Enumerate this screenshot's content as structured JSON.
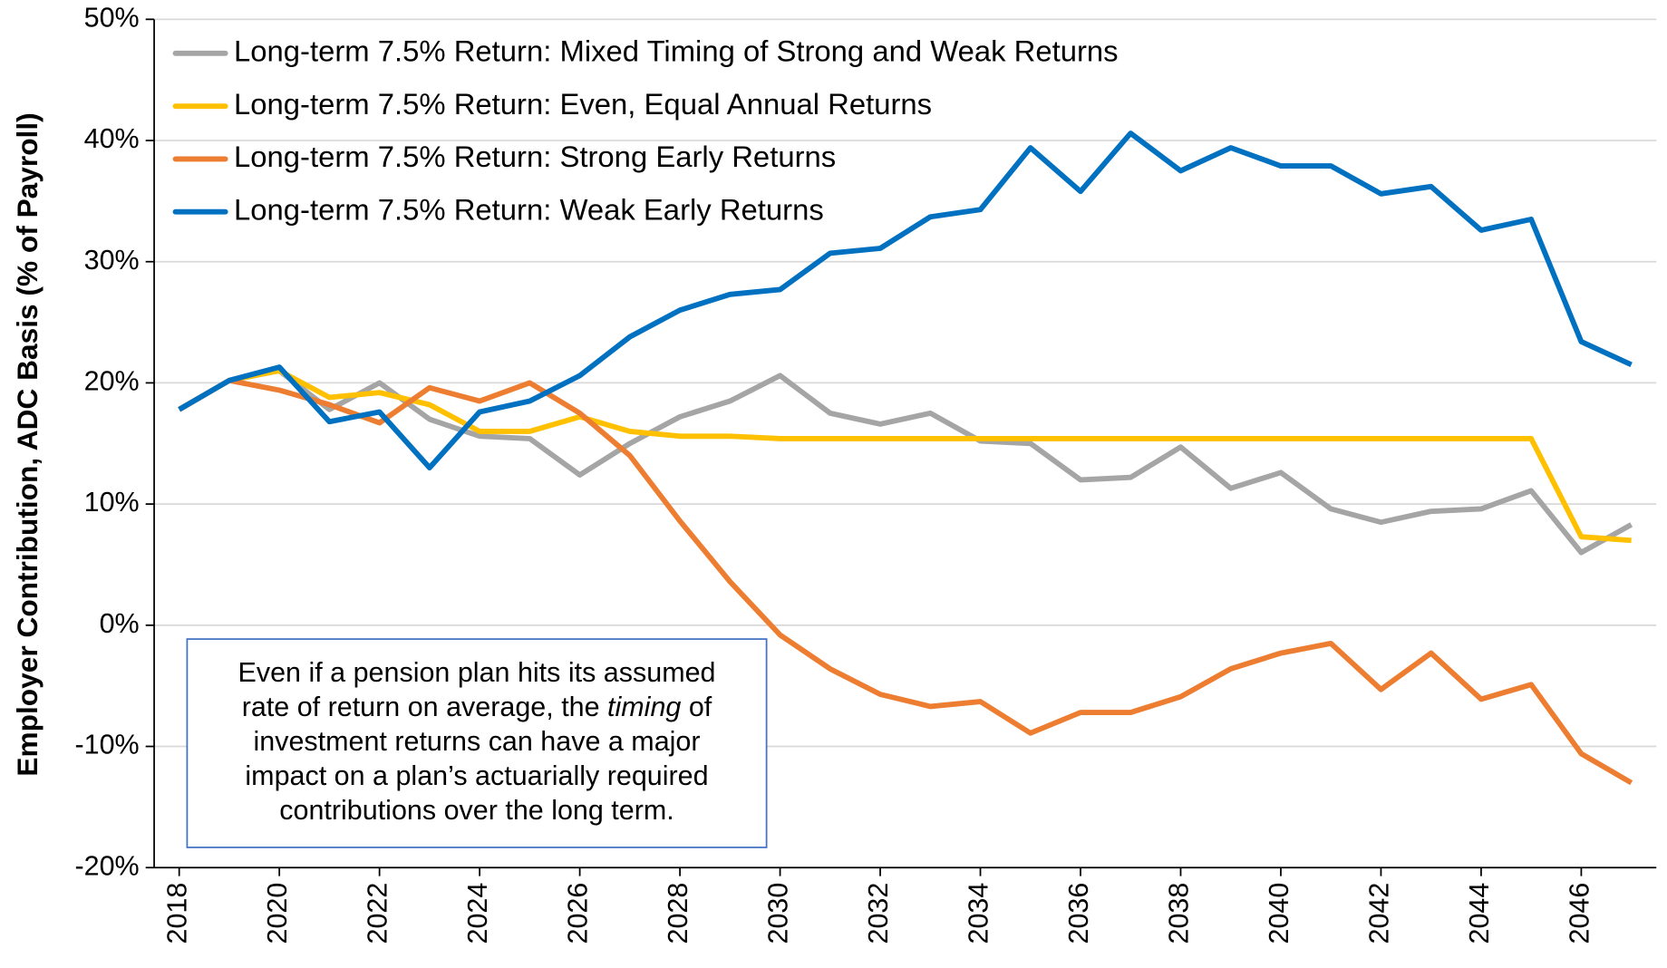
{
  "chart_data": {
    "type": "line",
    "y_label": "Employer Contribution, ADC Basis (% of Payroll)",
    "x": [
      2018,
      2019,
      2020,
      2021,
      2022,
      2023,
      2024,
      2025,
      2026,
      2027,
      2028,
      2029,
      2030,
      2031,
      2032,
      2033,
      2034,
      2035,
      2036,
      2037,
      2038,
      2039,
      2040,
      2041,
      2042,
      2043,
      2044,
      2045,
      2046,
      2047
    ],
    "xlim": [
      2017.5,
      2047.5
    ],
    "xticks": [
      2018,
      2020,
      2022,
      2024,
      2026,
      2028,
      2030,
      2032,
      2034,
      2036,
      2038,
      2040,
      2042,
      2044,
      2046
    ],
    "ylim": [
      -20,
      50
    ],
    "yticks": [
      {
        "value": -20,
        "label": "-20%"
      },
      {
        "value": -10,
        "label": "-10%"
      },
      {
        "value": 0,
        "label": "0%"
      },
      {
        "value": 10,
        "label": "10%"
      },
      {
        "value": 20,
        "label": "20%"
      },
      {
        "value": 30,
        "label": "30%"
      },
      {
        "value": 40,
        "label": "40%"
      },
      {
        "value": 50,
        "label": "50%"
      }
    ],
    "grid": true,
    "legend": "upper left",
    "series": [
      {
        "name": "Long-term 7.5% Return: Mixed Timing of Strong and Weak Returns",
        "color": "#a5a5a5",
        "values": [
          17.8,
          20.2,
          21.0,
          17.8,
          20.0,
          17.0,
          15.6,
          15.4,
          12.4,
          15.0,
          17.2,
          18.5,
          20.6,
          17.5,
          16.6,
          17.5,
          15.2,
          15.0,
          12.0,
          12.2,
          14.7,
          11.3,
          12.6,
          9.6,
          8.5,
          9.4,
          9.6,
          11.1,
          6.0,
          8.3
        ]
      },
      {
        "name": "Long-term 7.5% Return: Even, Equal Annual Returns",
        "color": "#ffc000",
        "values": [
          17.8,
          20.2,
          21.0,
          18.8,
          19.2,
          18.2,
          16.0,
          16.0,
          17.2,
          16.0,
          15.6,
          15.6,
          15.4,
          15.4,
          15.4,
          15.4,
          15.4,
          15.4,
          15.4,
          15.4,
          15.4,
          15.4,
          15.4,
          15.4,
          15.4,
          15.4,
          15.4,
          15.4,
          7.3,
          7.0
        ]
      },
      {
        "name": "Long-term 7.5% Return: Strong Early Returns",
        "color": "#ed7d31",
        "values": [
          17.8,
          20.2,
          19.4,
          18.2,
          16.7,
          19.6,
          18.5,
          20.0,
          17.5,
          14.0,
          8.6,
          3.6,
          -0.8,
          -3.6,
          -5.7,
          -6.7,
          -6.3,
          -8.9,
          -7.2,
          -7.2,
          -5.9,
          -3.6,
          -2.3,
          -1.5,
          -5.3,
          -2.3,
          -6.1,
          -4.9,
          -10.6,
          -13.0
        ]
      },
      {
        "name": "Long-term 7.5% Return: Weak Early Returns",
        "color": "#0070c0",
        "values": [
          17.8,
          20.2,
          21.3,
          16.8,
          17.6,
          13.0,
          17.6,
          18.5,
          20.6,
          23.8,
          26.0,
          27.3,
          27.7,
          30.7,
          31.1,
          33.7,
          34.3,
          39.4,
          35.8,
          40.6,
          37.5,
          39.4,
          37.9,
          37.9,
          35.6,
          36.2,
          32.6,
          33.5,
          23.4,
          21.5
        ]
      }
    ],
    "annotation": [
      [
        "Even if a pension plan hits its assumed"
      ],
      [
        "rate of return on average, the ",
        "timing",
        " of"
      ],
      [
        "investment returns can have a major"
      ],
      [
        "impact on a plan’s actuarially required"
      ],
      [
        "contributions over the long term."
      ]
    ]
  }
}
